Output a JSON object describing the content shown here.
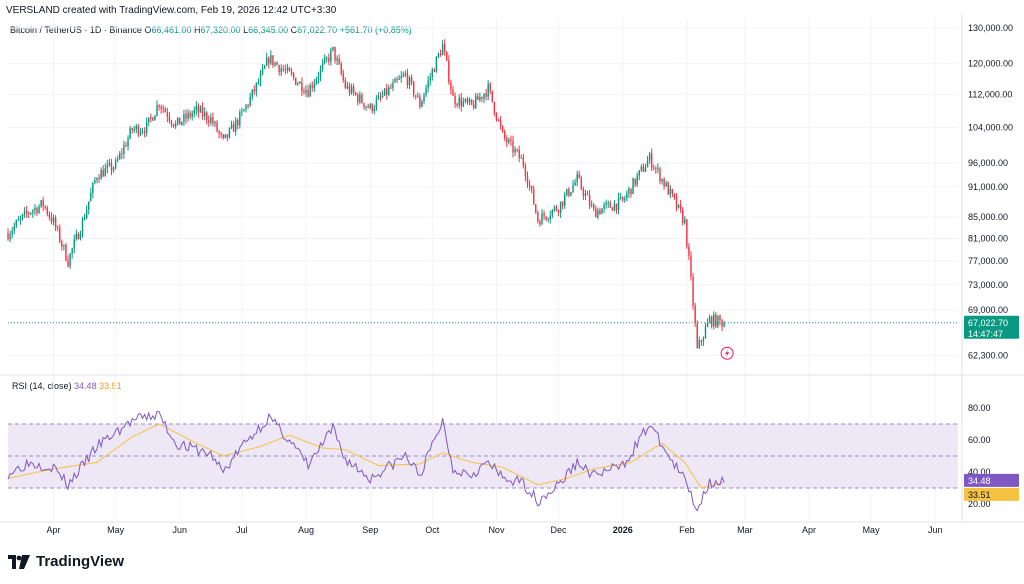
{
  "header": {
    "credit": "VERSLAND created with TradingView.com, Feb 19, 2026 12:42 UTC+3:30"
  },
  "legend": {
    "symbol": "Bitcoin / TetherUS · 1D · Binance",
    "o_label": "O",
    "o": "66,461.00",
    "h_label": "H",
    "h": "67,320.00",
    "l_label": "L",
    "l": "66,345.00",
    "c_label": "C",
    "c": "67,022.70",
    "chg": "+561.70 (+0.85%)"
  },
  "rsi_legend": {
    "name": "RSI (14, close)",
    "rsi": "34.48",
    "ma": "33.51"
  },
  "price_tag": {
    "value": "67,022.70",
    "countdown": "14:47:47"
  },
  "rsi_tags": {
    "rsi": "34.48",
    "ma": "33.51"
  },
  "footer": {
    "brand": "TradingView"
  },
  "colors": {
    "up": "#089981",
    "down": "#f23645",
    "rsi": "#7e57c2",
    "rsi_ma": "#f5c242",
    "band": "#ede7f6"
  },
  "chart_data": {
    "type": "candlestick",
    "symbol": "BTCUSDT",
    "timeframe": "1D",
    "y_axis_ticks": [
      "130,000.00",
      "120,000.00",
      "112,000.00",
      "104,000.00",
      "96,000.00",
      "91,000.00",
      "85,000.00",
      "81,000.00",
      "77,000.00",
      "73,000.00",
      "69,000.00",
      "62,300.00"
    ],
    "y_tick_values": [
      130000,
      120000,
      112000,
      104000,
      96000,
      91000,
      85000,
      81000,
      77000,
      73000,
      69000,
      62300
    ],
    "x_axis_labels": [
      "Apr",
      "May",
      "Jun",
      "Jul",
      "Aug",
      "Sep",
      "Oct",
      "Nov",
      "Dec",
      "2026",
      "Feb",
      "Mar",
      "Apr",
      "May",
      "Jun"
    ],
    "x_axis_dates": [
      "2025-04-01",
      "2025-05-01",
      "2025-06-01",
      "2025-07-01",
      "2025-08-01",
      "2025-09-01",
      "2025-10-01",
      "2025-11-01",
      "2025-12-01",
      "2026-01-01",
      "2026-02-01",
      "2026-03-01",
      "2026-04-01",
      "2026-05-01",
      "2026-06-01"
    ],
    "price_path": [
      [
        "2025-03-10",
        82000
      ],
      [
        "2025-03-20",
        86000
      ],
      [
        "2025-03-27",
        87500
      ],
      [
        "2025-04-01",
        84000
      ],
      [
        "2025-04-08",
        77000
      ],
      [
        "2025-04-15",
        84000
      ],
      [
        "2025-04-22",
        93500
      ],
      [
        "2025-05-01",
        95500
      ],
      [
        "2025-05-09",
        103500
      ],
      [
        "2025-05-16",
        104000
      ],
      [
        "2025-05-22",
        110000
      ],
      [
        "2025-05-30",
        104500
      ],
      [
        "2025-06-09",
        108000
      ],
      [
        "2025-06-16",
        106000
      ],
      [
        "2025-06-22",
        100500
      ],
      [
        "2025-07-01",
        107000
      ],
      [
        "2025-07-10",
        116000
      ],
      [
        "2025-07-14",
        121500
      ],
      [
        "2025-07-24",
        117000
      ],
      [
        "2025-08-02",
        113000
      ],
      [
        "2025-08-14",
        123500
      ],
      [
        "2025-08-20",
        114000
      ],
      [
        "2025-09-01",
        108500
      ],
      [
        "2025-09-18",
        117000
      ],
      [
        "2025-09-25",
        109500
      ],
      [
        "2025-10-06",
        125000
      ],
      [
        "2025-10-11",
        111000
      ],
      [
        "2025-10-20",
        109000
      ],
      [
        "2025-10-28",
        113500
      ],
      [
        "2025-11-04",
        102000
      ],
      [
        "2025-11-14",
        96000
      ],
      [
        "2025-11-21",
        84500
      ],
      [
        "2025-12-01",
        87000
      ],
      [
        "2025-12-10",
        92500
      ],
      [
        "2025-12-18",
        86000
      ],
      [
        "2026-01-01",
        88000
      ],
      [
        "2026-01-14",
        97000
      ],
      [
        "2026-01-24",
        89500
      ],
      [
        "2026-01-31",
        84000
      ],
      [
        "2026-02-06",
        63000
      ],
      [
        "2026-02-12",
        67500
      ],
      [
        "2026-02-19",
        67022.7
      ]
    ],
    "last": {
      "open": 66461.0,
      "high": 67320.0,
      "low": 66345.0,
      "close": 67022.7
    },
    "rsi": {
      "period": 14,
      "y_axis_ticks": [
        "80.00",
        "60.00",
        "40.00",
        "20.00"
      ],
      "y_tick_values": [
        80,
        60,
        40,
        20
      ],
      "band": [
        30,
        70
      ],
      "path": [
        [
          "2025-03-10",
          39
        ],
        [
          "2025-03-20",
          46
        ],
        [
          "2025-04-01",
          43
        ],
        [
          "2025-04-08",
          32
        ],
        [
          "2025-04-22",
          56
        ],
        [
          "2025-05-09",
          72
        ],
        [
          "2025-05-22",
          76
        ],
        [
          "2025-05-30",
          58
        ],
        [
          "2025-06-16",
          51
        ],
        [
          "2025-06-22",
          40
        ],
        [
          "2025-07-01",
          56
        ],
        [
          "2025-07-14",
          74
        ],
        [
          "2025-07-24",
          60
        ],
        [
          "2025-08-02",
          44
        ],
        [
          "2025-08-14",
          67
        ],
        [
          "2025-08-20",
          48
        ],
        [
          "2025-09-01",
          36
        ],
        [
          "2025-09-18",
          50
        ],
        [
          "2025-09-25",
          38
        ],
        [
          "2025-10-06",
          72
        ],
        [
          "2025-10-11",
          42
        ],
        [
          "2025-10-20",
          39
        ],
        [
          "2025-10-28",
          46
        ],
        [
          "2025-11-04",
          36
        ],
        [
          "2025-11-14",
          33
        ],
        [
          "2025-11-21",
          22
        ],
        [
          "2025-12-01",
          32
        ],
        [
          "2025-12-10",
          46
        ],
        [
          "2025-12-18",
          38
        ],
        [
          "2026-01-01",
          44
        ],
        [
          "2026-01-14",
          70
        ],
        [
          "2026-01-24",
          48
        ],
        [
          "2026-01-31",
          35
        ],
        [
          "2026-02-06",
          17
        ],
        [
          "2026-02-12",
          34
        ],
        [
          "2026-02-19",
          34.48
        ]
      ],
      "ma_path": [
        [
          "2025-03-10",
          36
        ],
        [
          "2025-04-01",
          42
        ],
        [
          "2025-04-22",
          46
        ],
        [
          "2025-05-09",
          62
        ],
        [
          "2025-05-22",
          70
        ],
        [
          "2025-06-09",
          58
        ],
        [
          "2025-06-22",
          50
        ],
        [
          "2025-07-10",
          56
        ],
        [
          "2025-07-24",
          63
        ],
        [
          "2025-08-09",
          55
        ],
        [
          "2025-08-20",
          54
        ],
        [
          "2025-09-05",
          44
        ],
        [
          "2025-09-25",
          45
        ],
        [
          "2025-10-06",
          52
        ],
        [
          "2025-10-20",
          46
        ],
        [
          "2025-11-04",
          43
        ],
        [
          "2025-11-21",
          32
        ],
        [
          "2025-12-05",
          36
        ],
        [
          "2025-12-18",
          42
        ],
        [
          "2026-01-05",
          46
        ],
        [
          "2026-01-20",
          58
        ],
        [
          "2026-01-31",
          46
        ],
        [
          "2026-02-08",
          30
        ],
        [
          "2026-02-19",
          33.51
        ]
      ]
    }
  }
}
